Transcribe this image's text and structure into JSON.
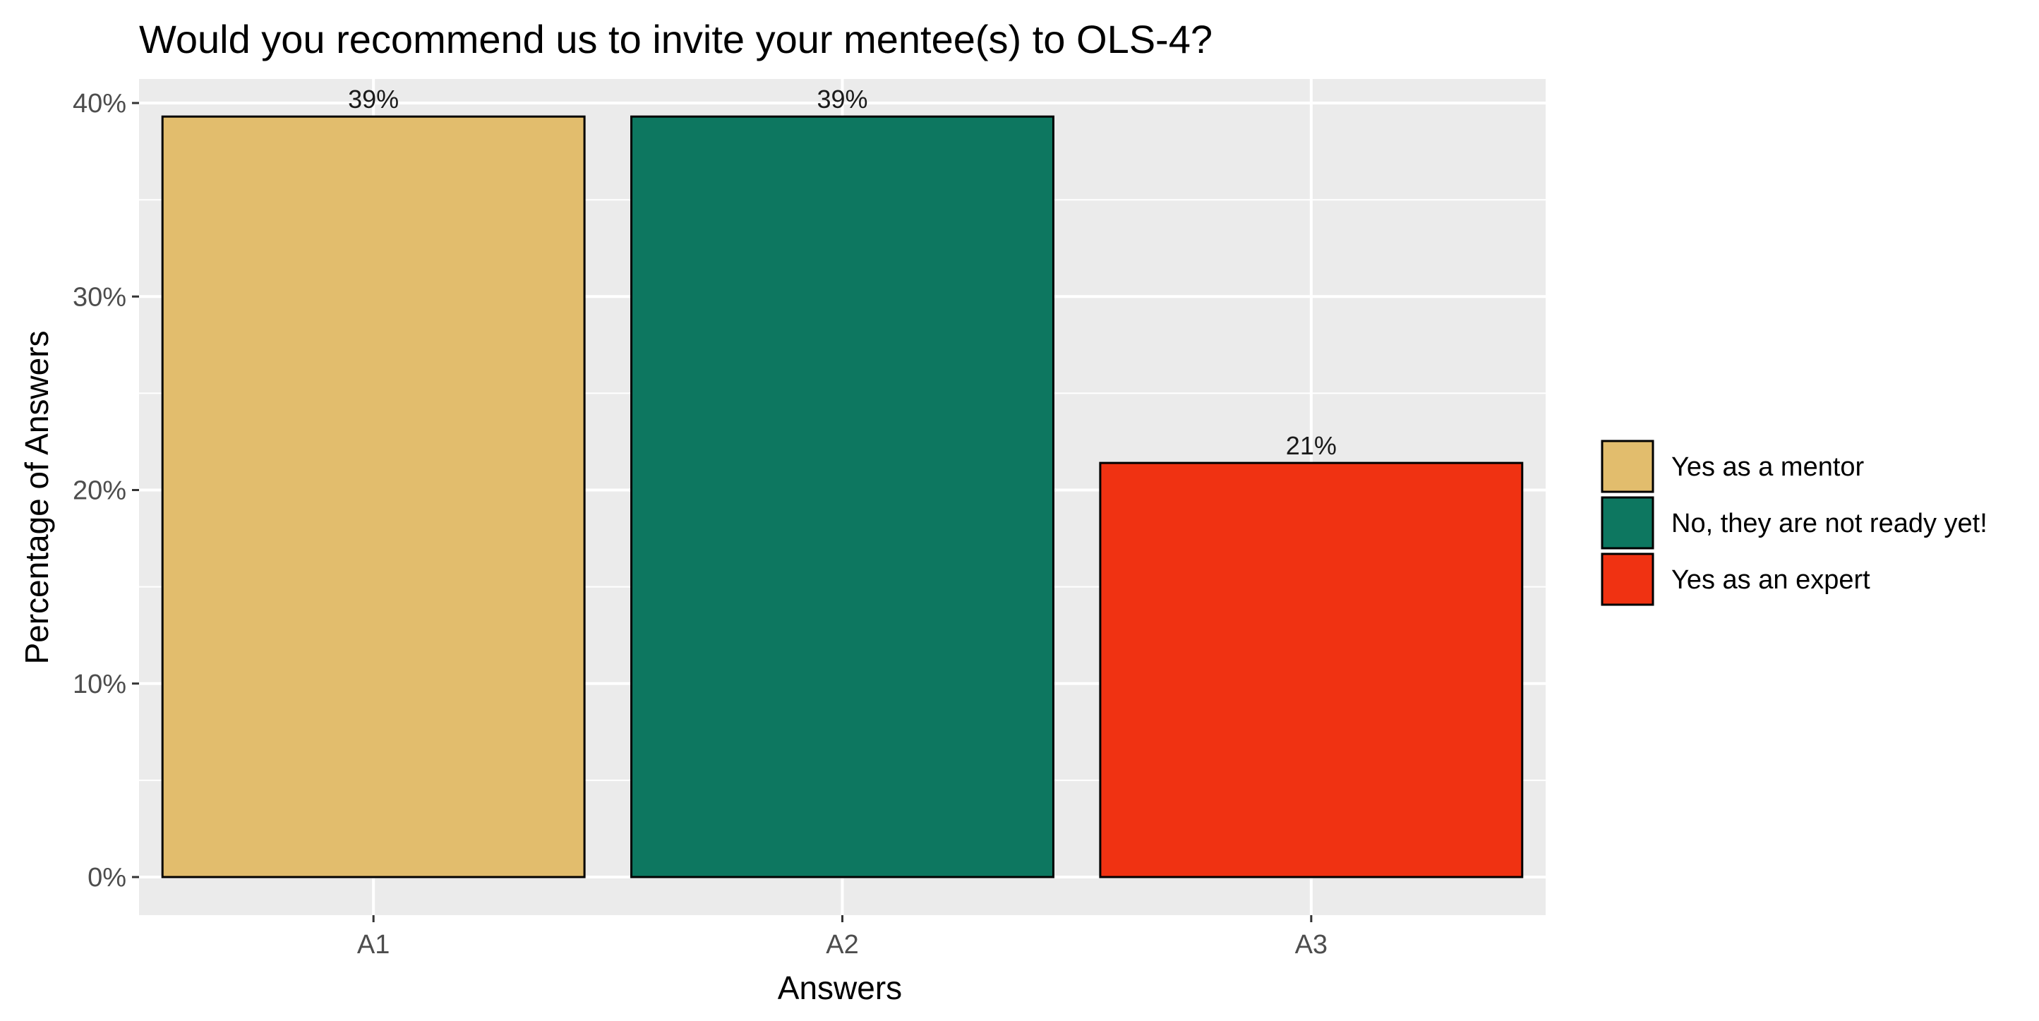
{
  "chart_data": {
    "type": "bar",
    "title": "Would you recommend us to invite your mentee(s) to OLS-4?",
    "xlabel": "Answers",
    "ylabel": "Percentage of Answers",
    "categories": [
      "A1",
      "A2",
      "A3"
    ],
    "values": [
      39.3,
      39.3,
      21.4
    ],
    "value_labels": [
      "39%",
      "39%",
      "21%"
    ],
    "ylim": [
      0,
      42
    ],
    "yticks": [
      0,
      10,
      20,
      30,
      40
    ],
    "ytick_labels": [
      "0%",
      "10%",
      "20%",
      "30%",
      "40%"
    ],
    "colors": [
      "#e2bd6d",
      "#0d7760",
      "#f03212"
    ],
    "grid": true,
    "panel_background": "#ebebeb",
    "legend": {
      "position": "right",
      "entries": [
        {
          "label": "Yes as a mentor",
          "color": "#e2bd6d"
        },
        {
          "label": "No, they are not ready yet!",
          "color": "#0d7760"
        },
        {
          "label": "Yes as an expert",
          "color": "#f03212"
        }
      ]
    }
  }
}
